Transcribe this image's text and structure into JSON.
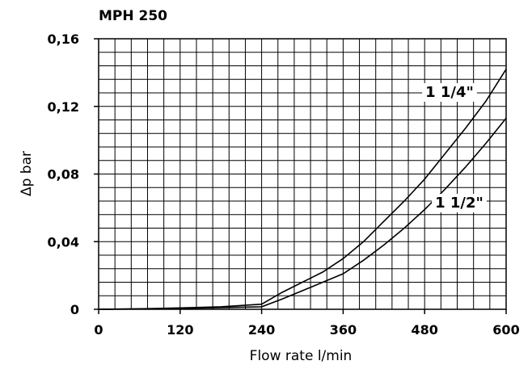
{
  "chart_data": {
    "type": "line",
    "title": "MPH 250",
    "xlabel": "Flow rate l/min",
    "ylabel": "Δp bar",
    "xlim": [
      0,
      600
    ],
    "ylim": [
      0,
      0.16
    ],
    "x_ticks": [
      0,
      120,
      240,
      360,
      480,
      600
    ],
    "x_tick_labels": [
      "0",
      "120",
      "240",
      "360",
      "480",
      "600"
    ],
    "y_ticks": [
      0,
      0.04,
      0.08,
      0.12,
      0.16
    ],
    "y_tick_labels": [
      "0",
      "0,04",
      "0,08",
      "0,12",
      "0,16"
    ],
    "grid": true,
    "minor_grid_x_step": 24,
    "minor_grid_y_step": 0.008,
    "series": [
      {
        "name": "1 1/4\"",
        "x": [
          0,
          60,
          120,
          180,
          240,
          270,
          300,
          330,
          360,
          390,
          420,
          450,
          480,
          510,
          540,
          570,
          600
        ],
        "y": [
          0,
          0.0003,
          0.0008,
          0.0015,
          0.003,
          0.01,
          0.016,
          0.022,
          0.03,
          0.04,
          0.052,
          0.064,
          0.077,
          0.092,
          0.107,
          0.123,
          0.142
        ]
      },
      {
        "name": "1 1/2\"",
        "x": [
          0,
          60,
          120,
          180,
          240,
          270,
          300,
          330,
          360,
          390,
          420,
          450,
          480,
          510,
          540,
          570,
          600
        ],
        "y": [
          0,
          0.0002,
          0.0005,
          0.001,
          0.0015,
          0.006,
          0.011,
          0.016,
          0.021,
          0.029,
          0.038,
          0.048,
          0.059,
          0.071,
          0.084,
          0.098,
          0.113
        ]
      }
    ]
  }
}
